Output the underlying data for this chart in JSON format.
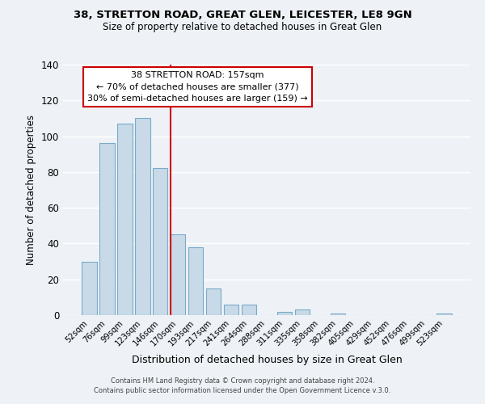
{
  "title1": "38, STRETTON ROAD, GREAT GLEN, LEICESTER, LE8 9GN",
  "title2": "Size of property relative to detached houses in Great Glen",
  "xlabel": "Distribution of detached houses by size in Great Glen",
  "ylabel": "Number of detached properties",
  "bar_labels": [
    "52sqm",
    "76sqm",
    "99sqm",
    "123sqm",
    "146sqm",
    "170sqm",
    "193sqm",
    "217sqm",
    "241sqm",
    "264sqm",
    "288sqm",
    "311sqm",
    "335sqm",
    "358sqm",
    "382sqm",
    "405sqm",
    "429sqm",
    "452sqm",
    "476sqm",
    "499sqm",
    "523sqm"
  ],
  "bar_values": [
    30,
    96,
    107,
    110,
    82,
    45,
    38,
    15,
    6,
    6,
    0,
    2,
    3,
    0,
    1,
    0,
    0,
    0,
    0,
    0,
    1
  ],
  "bar_color": "#c8d9e8",
  "bar_edgecolor": "#7aaac8",
  "vline_x": 4.57,
  "vline_color": "#cc0000",
  "ylim": [
    0,
    140
  ],
  "yticks": [
    0,
    20,
    40,
    60,
    80,
    100,
    120,
    140
  ],
  "annotation_title": "38 STRETTON ROAD: 157sqm",
  "annotation_line1": "← 70% of detached houses are smaller (377)",
  "annotation_line2": "30% of semi-detached houses are larger (159) →",
  "footer1": "Contains HM Land Registry data © Crown copyright and database right 2024.",
  "footer2": "Contains public sector information licensed under the Open Government Licence v.3.0.",
  "box_facecolor": "#ffffff",
  "box_edgecolor": "#cc0000",
  "background_color": "#eef2f7"
}
